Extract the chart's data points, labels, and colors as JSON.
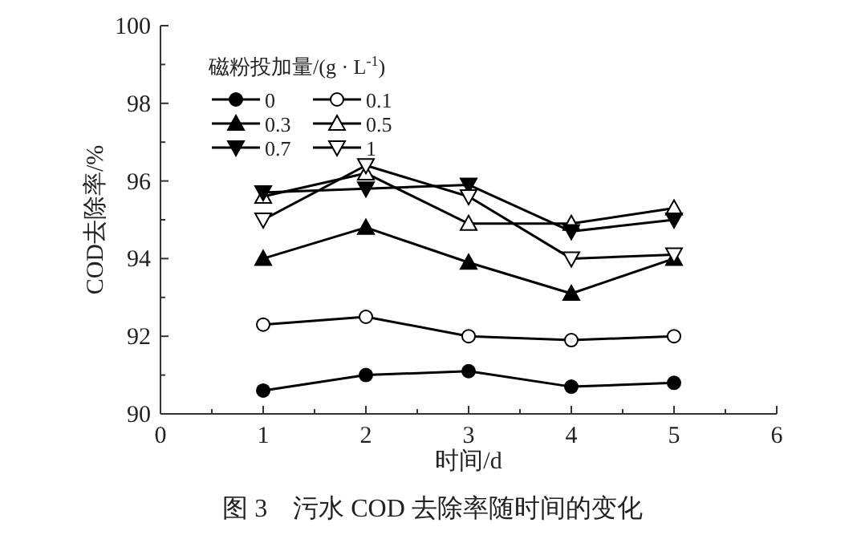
{
  "chart_data": {
    "type": "line",
    "title": "图 3　污水 COD 去除率随时间的变化",
    "xlabel": "时间/d",
    "ylabel": "COD去除率/%",
    "legend_title": "磁粉投加量/(g · L$^{-1}$)",
    "x": [
      1,
      2,
      3,
      4,
      5
    ],
    "xlim": [
      0,
      6
    ],
    "xticks": [
      0,
      1,
      2,
      3,
      4,
      5,
      6
    ],
    "ylim": [
      90,
      100
    ],
    "yticks": [
      90,
      92,
      94,
      96,
      98,
      100
    ],
    "legend": "top left",
    "grid": false,
    "line_style": "solid",
    "series": [
      {
        "name": "0",
        "color": "#000000",
        "marker": "circle",
        "values": [
          90.6,
          91.0,
          91.1,
          90.7,
          90.8
        ]
      },
      {
        "name": "0.1",
        "color": "#000000",
        "marker": "circle_open",
        "values": [
          92.3,
          92.5,
          92.0,
          91.9,
          92.0
        ]
      },
      {
        "name": "0.3",
        "color": "#000000",
        "marker": "triangle",
        "values": [
          94.0,
          94.8,
          93.9,
          93.1,
          94.0
        ]
      },
      {
        "name": "0.5",
        "color": "#000000",
        "marker": "triangle_open",
        "values": [
          95.6,
          96.2,
          94.9,
          94.9,
          95.3
        ]
      },
      {
        "name": "0.7",
        "color": "#000000",
        "marker": "triangle_down",
        "values": [
          95.7,
          95.8,
          95.9,
          94.7,
          95.0
        ]
      },
      {
        "name": "1",
        "color": "#000000",
        "marker": "triangle_down_open",
        "values": [
          95.0,
          96.4,
          95.6,
          94.0,
          94.1
        ]
      }
    ]
  }
}
